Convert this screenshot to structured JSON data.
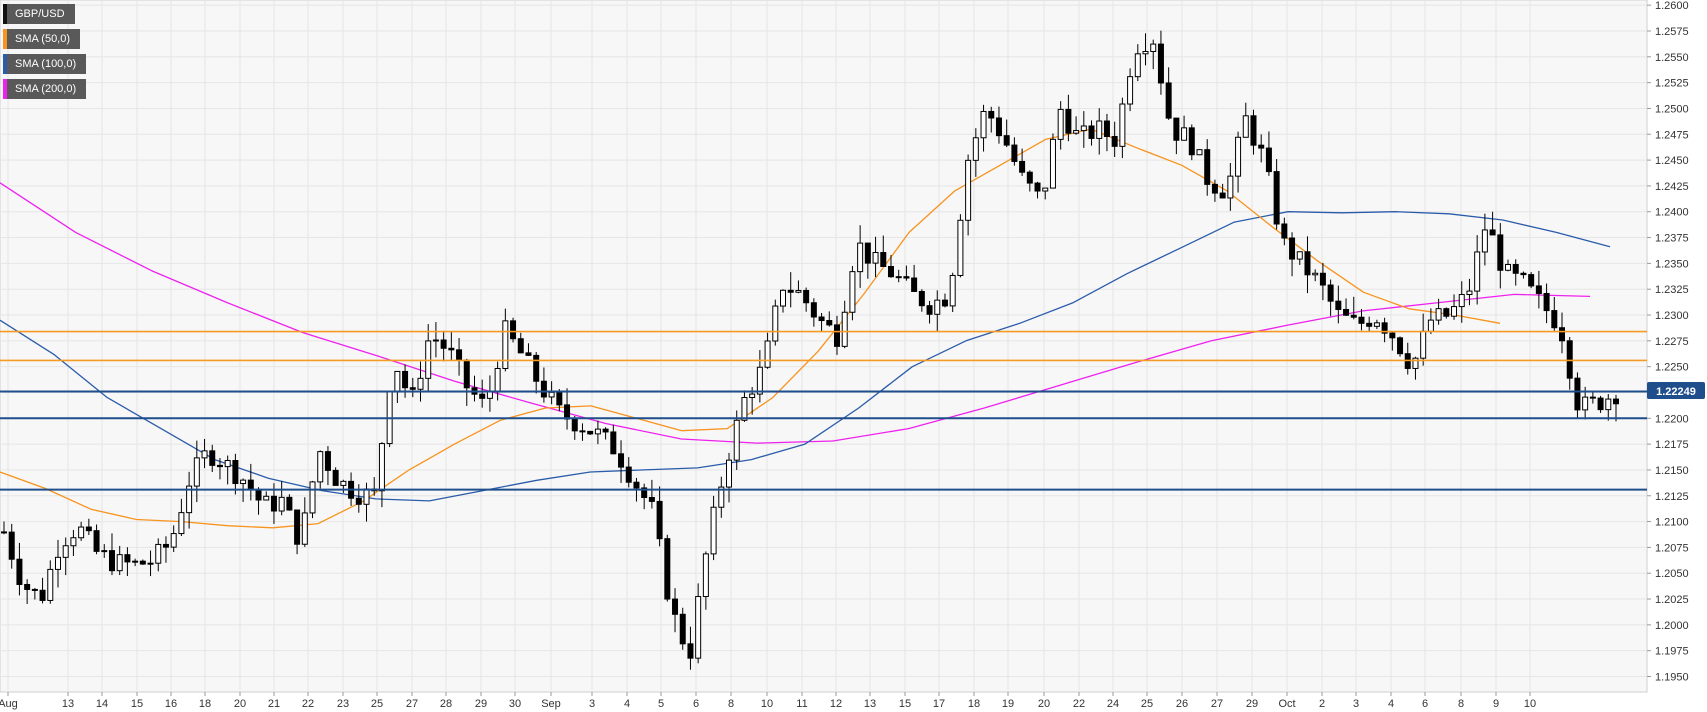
{
  "legend": {
    "pair": "GBP/USD",
    "sma50": "SMA (50,0)",
    "sma100": "SMA (100,0)",
    "sma200": "SMA (200,0)"
  },
  "colors": {
    "pair": "#111111",
    "sma50": "#f7931e",
    "sma100": "#2a5caa",
    "sma200": "#ee22ee",
    "support": "#1f4e8c",
    "resistance": "#f59a23",
    "grid": "#e6e6e6",
    "plot_bg": "#f7f7f7"
  },
  "price_label": "1.22249",
  "chart_data": {
    "type": "candlestick",
    "symbol": "GBP/USD",
    "ylim": [
      1.1935,
      1.2605
    ],
    "y_ticks": [
      "1.2600",
      "1.2575",
      "1.2550",
      "1.2525",
      "1.2500",
      "1.2475",
      "1.2450",
      "1.2425",
      "1.2400",
      "1.2375",
      "1.2350",
      "1.2325",
      "1.2300",
      "1.2275",
      "1.2250",
      "1.2225",
      "1.2200",
      "1.2175",
      "1.2150",
      "1.2125",
      "1.2100",
      "1.2075",
      "1.2050",
      "1.2025",
      "1.2000",
      "1.1975",
      "1.1950"
    ],
    "x_ticks": [
      "Aug",
      "13",
      "14",
      "15",
      "16",
      "18",
      "20",
      "21",
      "22",
      "23",
      "25",
      "27",
      "28",
      "29",
      "30",
      "Sep",
      "3",
      "4",
      "5",
      "6",
      "8",
      "10",
      "11",
      "12",
      "13",
      "15",
      "17",
      "18",
      "19",
      "20",
      "22",
      "24",
      "25",
      "26",
      "27",
      "29",
      "Oct",
      "2",
      "3",
      "4",
      "6",
      "8",
      "9",
      "10"
    ],
    "current_price": 1.22249,
    "horizontal_levels": [
      {
        "kind": "resistance",
        "value": 1.2284
      },
      {
        "kind": "resistance",
        "value": 1.2256
      },
      {
        "kind": "support",
        "value": 1.2226
      },
      {
        "kind": "support",
        "value": 1.22
      },
      {
        "kind": "support",
        "value": 1.2131
      }
    ],
    "price_path": [
      1.209,
      1.204,
      1.2025,
      1.208,
      1.2095,
      1.207,
      1.206,
      1.2058,
      1.2062,
      1.208,
      1.214,
      1.2168,
      1.2155,
      1.214,
      1.2115,
      1.212,
      1.208,
      1.217,
      1.214,
      1.2128,
      1.2125,
      1.226,
      1.2215,
      1.2282,
      1.2265,
      1.223,
      1.221,
      1.2285,
      1.226,
      1.223,
      1.2205,
      1.2195,
      1.2185,
      1.217,
      1.214,
      1.211,
      1.2015,
      1.197,
      1.208,
      1.216,
      1.222,
      1.225,
      1.233,
      1.232,
      1.2295,
      1.228,
      1.237,
      1.235,
      1.234,
      1.232,
      1.231,
      1.232,
      1.245,
      1.25,
      1.247,
      1.243,
      1.241,
      1.25,
      1.247,
      1.248,
      1.247,
      1.256,
      1.257,
      1.248,
      1.247,
      1.243,
      1.242,
      1.249,
      1.245,
      1.237,
      1.235,
      1.233,
      1.23,
      1.229,
      1.23,
      1.228,
      1.225,
      1.2295,
      1.23,
      1.232,
      1.239,
      1.234,
      1.233,
      1.231,
      1.229,
      1.221,
      1.2215,
      1.2225
    ],
    "series": [
      {
        "name": "SMA (50,0)",
        "values": [
          1.2148,
          1.2132,
          1.2112,
          1.2102,
          1.21,
          1.2096,
          1.2094,
          1.2098,
          1.212,
          1.215,
          1.2175,
          1.2198,
          1.221,
          1.2212,
          1.22,
          1.2188,
          1.219,
          1.222,
          1.2265,
          1.232,
          1.238,
          1.242,
          1.2445,
          1.247,
          1.248,
          1.2462,
          1.2445,
          1.242,
          1.2385,
          1.2352,
          1.2322,
          1.2306,
          1.23,
          1.2292
        ]
      },
      {
        "name": "SMA (100,0)",
        "values": [
          1.2295,
          1.2262,
          1.222,
          1.219,
          1.216,
          1.2142,
          1.213,
          1.2122,
          1.212,
          1.213,
          1.214,
          1.2148,
          1.215,
          1.2152,
          1.216,
          1.2175,
          1.221,
          1.225,
          1.2275,
          1.2292,
          1.2312,
          1.234,
          1.2365,
          1.239,
          1.24,
          1.2399,
          1.24,
          1.2398,
          1.2392,
          1.238,
          1.2366
        ]
      },
      {
        "name": "SMA (200,0)",
        "values": [
          1.2428,
          1.238,
          1.2343,
          1.2312,
          1.2283,
          1.226,
          1.2236,
          1.2215,
          1.2195,
          1.218,
          1.2176,
          1.2178,
          1.219,
          1.221,
          1.2232,
          1.2254,
          1.2275,
          1.229,
          1.2304,
          1.2312,
          1.232,
          1.2318
        ]
      }
    ]
  }
}
